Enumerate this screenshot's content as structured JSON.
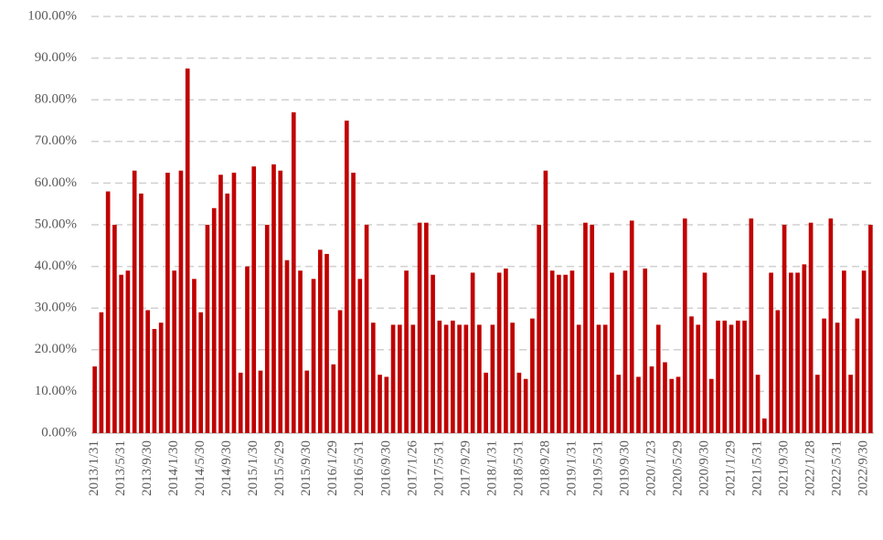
{
  "chart_data": {
    "type": "bar",
    "categories": [
      "2013/1/31",
      null,
      null,
      null,
      "2013/5/31",
      null,
      null,
      null,
      "2013/9/30",
      null,
      null,
      null,
      "2014/1/30",
      null,
      null,
      null,
      "2014/5/30",
      null,
      null,
      null,
      "2014/9/30",
      null,
      null,
      null,
      "2015/1/30",
      null,
      null,
      null,
      "2015/5/29",
      null,
      null,
      null,
      "2015/9/30",
      null,
      null,
      null,
      "2016/1/29",
      null,
      null,
      null,
      "2016/5/31",
      null,
      null,
      null,
      "2016/9/30",
      null,
      null,
      null,
      "2017/1/26",
      null,
      null,
      null,
      "2017/5/31",
      null,
      null,
      null,
      "2017/9/29",
      null,
      null,
      null,
      "2018/1/31",
      null,
      null,
      null,
      "2018/5/31",
      null,
      null,
      null,
      "2018/9/28",
      null,
      null,
      null,
      "2019/1/31",
      null,
      null,
      null,
      "2019/5/31",
      null,
      null,
      null,
      "2019/9/30",
      null,
      null,
      null,
      "2020/1/23",
      null,
      null,
      null,
      "2020/5/29",
      null,
      null,
      null,
      "2020/9/30",
      null,
      null,
      null,
      "2021/1/29",
      null,
      null,
      null,
      "2021/5/31",
      null,
      null,
      null,
      "2021/9/30",
      null,
      null,
      null,
      "2022/1/28",
      null,
      null,
      null,
      "2022/5/31",
      null,
      null,
      null,
      "2022/9/30",
      null
    ],
    "values": [
      16,
      29,
      58,
      50,
      38,
      39,
      63,
      57.5,
      29.5,
      25,
      26.5,
      62.5,
      39,
      63,
      87.5,
      37,
      29,
      50,
      54,
      62,
      57.5,
      62.5,
      14.5,
      40,
      64,
      15,
      50,
      64.5,
      63,
      41.5,
      77,
      39,
      15,
      37,
      44,
      43,
      16.5,
      29.5,
      75,
      62.5,
      37,
      50,
      26.5,
      14,
      13.5,
      26,
      26,
      39,
      26,
      50.5,
      50.5,
      38,
      27,
      26,
      27,
      26,
      26,
      38.5,
      26,
      14.5,
      26,
      38.5,
      39.5,
      26.5,
      14.5,
      13,
      27.5,
      50,
      63,
      39,
      38,
      38,
      39,
      26,
      50.5,
      50,
      26,
      26,
      38.5,
      14,
      39,
      51,
      13.5,
      39.5,
      16,
      26,
      17,
      13,
      13.5,
      51.5,
      28,
      26,
      38.5,
      13,
      27,
      27,
      26,
      27,
      27,
      51.5,
      14,
      3.5,
      38.5,
      29.5,
      50,
      38.5,
      38.5,
      40.5,
      50.5,
      14,
      27.5,
      51.5,
      26.5,
      39,
      14,
      27.5,
      39,
      50
    ],
    "color": "#c00000",
    "ylim": [
      0,
      100
    ],
    "yticks": [
      {
        "value": 0,
        "label": "0.00%"
      },
      {
        "value": 10,
        "label": "10.00%"
      },
      {
        "value": 20,
        "label": "20.00%"
      },
      {
        "value": 30,
        "label": "30.00%"
      },
      {
        "value": 40,
        "label": "40.00%"
      },
      {
        "value": 50,
        "label": "50.00%"
      },
      {
        "value": 60,
        "label": "60.00%"
      },
      {
        "value": 70,
        "label": "70.00%"
      },
      {
        "value": 80,
        "label": "80.00%"
      },
      {
        "value": 90,
        "label": "90.00%"
      },
      {
        "value": 100,
        "label": "100.00%"
      }
    ],
    "grid": true
  }
}
